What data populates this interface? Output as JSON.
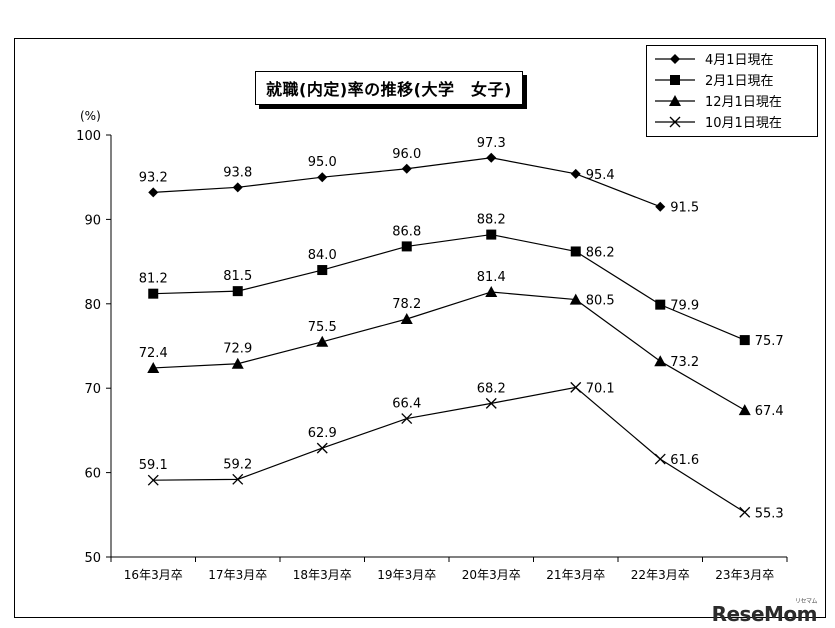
{
  "chart_data": {
    "type": "line",
    "title": "就職(内定)率の推移(大学　女子)",
    "ylabel": "(%)",
    "xlabel": "",
    "ylim": [
      50,
      100
    ],
    "yticks": [
      50,
      60,
      70,
      80,
      90,
      100
    ],
    "grid": false,
    "legend": "top-right",
    "categories": [
      "16年3月卒",
      "17年3月卒",
      "18年3月卒",
      "19年3月卒",
      "20年3月卒",
      "21年3月卒",
      "22年3月卒",
      "23年3月卒"
    ],
    "series": [
      {
        "name": "4月1日現在",
        "marker": "diamond",
        "values": [
          93.2,
          93.8,
          95.0,
          96.0,
          97.3,
          95.4,
          91.5,
          null
        ]
      },
      {
        "name": "2月1日現在",
        "marker": "square",
        "values": [
          81.2,
          81.5,
          84.0,
          86.8,
          88.2,
          86.2,
          79.9,
          75.7
        ]
      },
      {
        "name": "12月1日現在",
        "marker": "triangle",
        "values": [
          72.4,
          72.9,
          75.5,
          78.2,
          81.4,
          80.5,
          73.2,
          67.4
        ]
      },
      {
        "name": "10月1日現在",
        "marker": "x",
        "values": [
          59.1,
          59.2,
          62.9,
          66.4,
          68.2,
          70.1,
          61.6,
          55.3
        ]
      }
    ]
  },
  "watermark": {
    "text": "ReseMom",
    "superscript": "リセマム"
  }
}
